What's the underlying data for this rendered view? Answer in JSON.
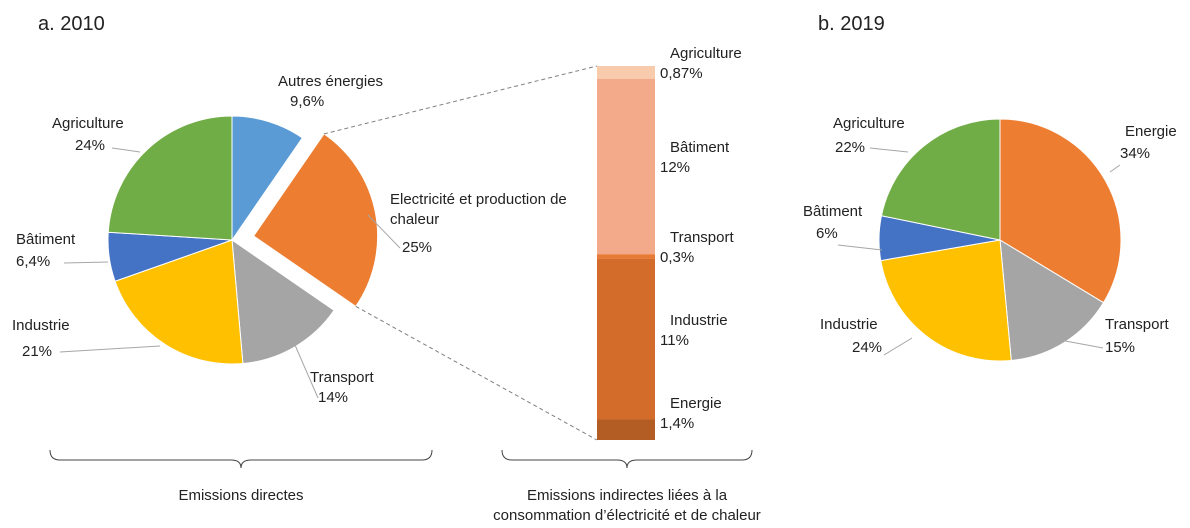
{
  "chart_data": [
    {
      "type": "pie",
      "title": "a. 2010",
      "categories": [
        "Autres énergies",
        "Electricité et production de chaleur",
        "Transport",
        "Industrie",
        "Bâtiment",
        "Agriculture"
      ],
      "values": [
        9.6,
        25,
        14,
        21,
        6.4,
        24
      ],
      "value_labels": [
        "9,6%",
        "25%",
        "14%",
        "21%",
        "6,4%",
        "24%"
      ],
      "colors": [
        "#5b9bd5",
        "#ed7d31",
        "#a5a5a5",
        "#ffc000",
        "#4472c4",
        "#70ad47"
      ],
      "exploded": 1,
      "annotation": "Emissions directes"
    },
    {
      "type": "bar",
      "stacked": true,
      "categories": [
        "Agriculture",
        "Bâtiment",
        "Transport",
        "Industrie",
        "Energie"
      ],
      "values": [
        0.87,
        12,
        0.3,
        11,
        1.4
      ],
      "value_labels": [
        "0,87%",
        "12%",
        "0,3%",
        "11%",
        "1,4%"
      ],
      "colors": [
        "#f8cbad",
        "#f2aa8a",
        "#e97a35",
        "#d36b2b",
        "#b35c24"
      ],
      "annotation": "Emissions indirectes liées à la consommation d’électricité et de chaleur"
    },
    {
      "type": "pie",
      "title": "b. 2019",
      "categories": [
        "Energie",
        "Transport",
        "Industrie",
        "Bâtiment",
        "Agriculture"
      ],
      "values": [
        34,
        15,
        24,
        6,
        22
      ],
      "value_labels": [
        "34%",
        "15%",
        "24%",
        "6%",
        "22%"
      ],
      "colors": [
        "#ed7d31",
        "#a5a5a5",
        "#ffc000",
        "#4472c4",
        "#70ad47"
      ]
    }
  ]
}
